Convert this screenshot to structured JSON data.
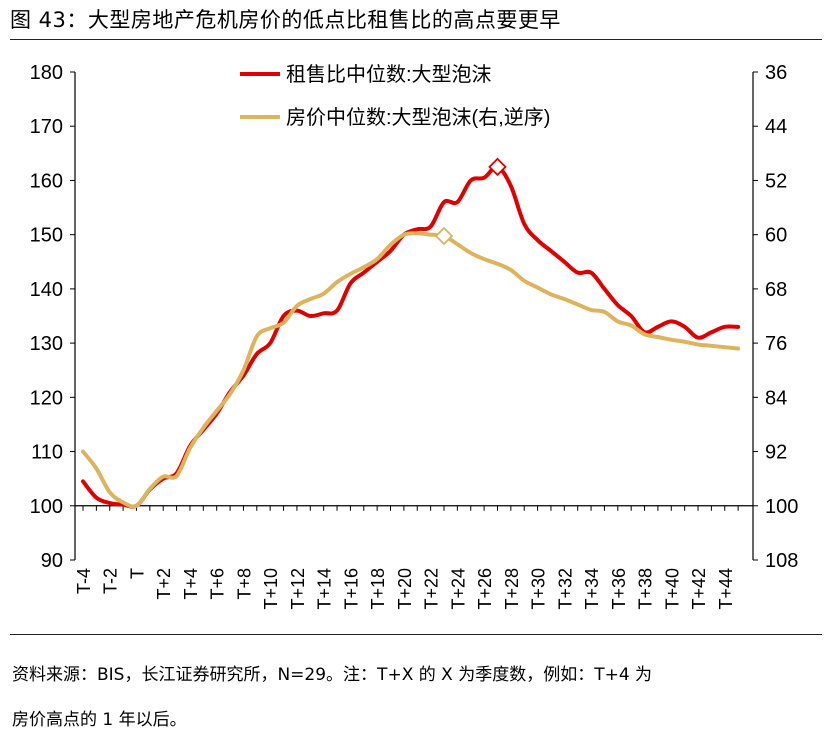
{
  "title": "图 43：大型房地产危机房价的低点比租售比的高点要更早",
  "footer": {
    "line1": "资料来源：BIS，长江证券研究所，N=29。注：T+X 的 X 为季度数，例如：T+4 为",
    "line2": "房价高点的 1 年以后。"
  },
  "chart_data": {
    "type": "line",
    "categories": [
      "T-4",
      "T-3",
      "T-2",
      "T-1",
      "T",
      "T+1",
      "T+2",
      "T+3",
      "T+4",
      "T+5",
      "T+6",
      "T+7",
      "T+8",
      "T+9",
      "T+10",
      "T+11",
      "T+12",
      "T+13",
      "T+14",
      "T+15",
      "T+16",
      "T+17",
      "T+18",
      "T+19",
      "T+20",
      "T+21",
      "T+22",
      "T+23",
      "T+24",
      "T+25",
      "T+26",
      "T+27",
      "T+28",
      "T+29",
      "T+30",
      "T+31",
      "T+32",
      "T+33",
      "T+34",
      "T+35",
      "T+36",
      "T+37",
      "T+38",
      "T+39",
      "T+40",
      "T+41",
      "T+42",
      "T+43",
      "T+44",
      "T+45"
    ],
    "x_tick_labels": [
      "T-4",
      "T-2",
      "T",
      "T+2",
      "T+4",
      "T+6",
      "T+8",
      "T+10",
      "T+12",
      "T+14",
      "T+16",
      "T+18",
      "T+20",
      "T+22",
      "T+24",
      "T+26",
      "T+28",
      "T+30",
      "T+32",
      "T+34",
      "T+36",
      "T+38",
      "T+40",
      "T+42",
      "T+44"
    ],
    "y_left": {
      "lim": [
        90,
        180
      ],
      "ticks": [
        90,
        100,
        110,
        120,
        130,
        140,
        150,
        160,
        170,
        180
      ]
    },
    "y_right": {
      "lim": [
        108,
        36
      ],
      "reversed": true,
      "ticks": [
        36,
        44,
        52,
        60,
        68,
        76,
        84,
        92,
        100,
        108
      ]
    },
    "series": [
      {
        "name": "租售比中位数:大型泡沫",
        "axis": "left",
        "color": "#e00000",
        "values": [
          104.5,
          101.5,
          100.5,
          100.2,
          100,
          103,
          105,
          106,
          111,
          114,
          117,
          121,
          124,
          128,
          130,
          135,
          136,
          135,
          135.5,
          136,
          141,
          143,
          145,
          147,
          150,
          151,
          151.5,
          156,
          156,
          160,
          160.5,
          162.5,
          159,
          152,
          149,
          147,
          145,
          143,
          143,
          140,
          137,
          135,
          132,
          133,
          134,
          133,
          131,
          132,
          133,
          133
        ],
        "marker": {
          "index": 31,
          "value": 162.5
        }
      },
      {
        "name": "房价中位数:大型泡沫(右,逆序)",
        "axis": "right",
        "color": "#ddb45c",
        "values": [
          92,
          94.5,
          98,
          99.5,
          100,
          97.5,
          95.7,
          95.6,
          91.5,
          88.5,
          86,
          83.5,
          80,
          75,
          73.8,
          73,
          70.5,
          69.5,
          68.7,
          67,
          65.8,
          64.8,
          63.6,
          61.5,
          60,
          59.8,
          60,
          60.2,
          61.4,
          62.7,
          63.6,
          64.3,
          65.2,
          66.8,
          67.8,
          68.8,
          69.5,
          70.3,
          71.1,
          71.4,
          72.8,
          73.4,
          74.7,
          75.1,
          75.5,
          75.8,
          76.2,
          76.4,
          76.6,
          76.8
        ],
        "marker": {
          "index": 27,
          "value": 60.2
        }
      }
    ],
    "legend_position": "top-center",
    "grid": false
  },
  "colors": {
    "series1": "#e00000",
    "series2": "#ddb45c",
    "axis": "#000000"
  }
}
